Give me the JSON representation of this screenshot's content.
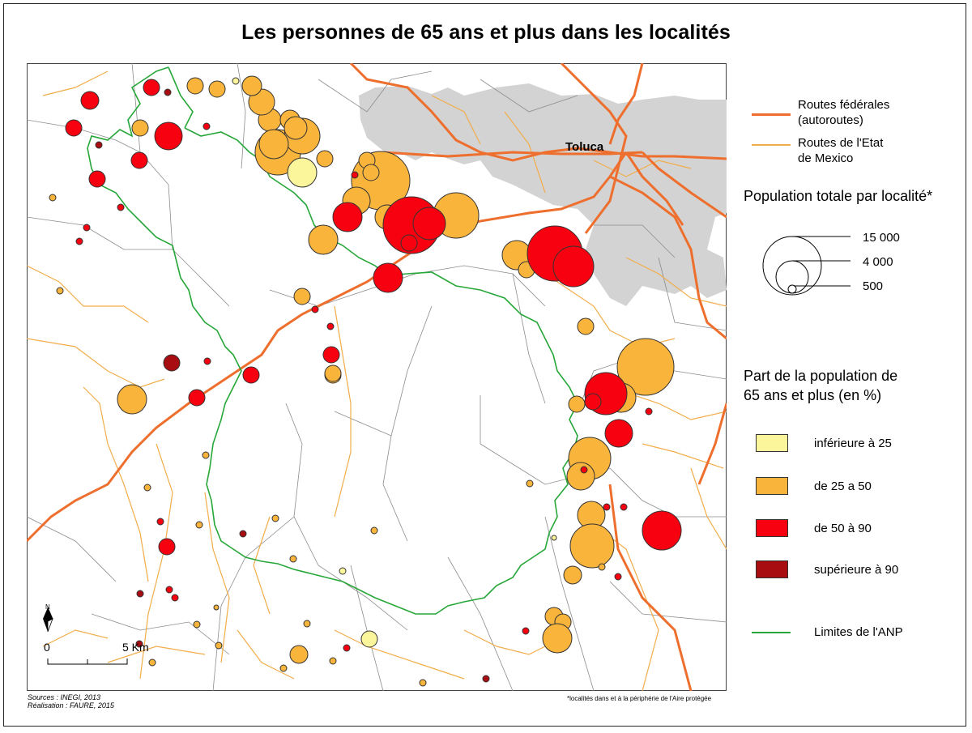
{
  "title": "Les personnes de 65 ans et plus dans les localités",
  "map": {
    "city_label": "Toluca",
    "north_label": "N",
    "scale": {
      "start": "0",
      "end": "5 Km"
    },
    "sources": [
      "Sources : INEGI, 2013",
      "Réalisation : FAURE, 2015"
    ],
    "footnote": "*localités dans et à la périphérie de l'Aire protégée"
  },
  "legend": {
    "roads_federal": "Routes fédérales\n(autoroutes)",
    "roads_state": "Routes de l'Etat\nde Mexico",
    "population_title": "Population totale par localité*",
    "population_sizes": [
      "15 000",
      "4 000",
      "500"
    ],
    "share_title": "Part de la population de\n65 ans et plus (en %)",
    "share_classes": [
      {
        "label": "inférieure à 25",
        "color": "#fbf59b"
      },
      {
        "label": "de 25 a 50",
        "color": "#f9b43c"
      },
      {
        "label": "de 50 à 90",
        "color": "#f7000f"
      },
      {
        "label": "supérieure à 90",
        "color": "#a80d12"
      }
    ],
    "anp_limit": "Limites de l'ANP",
    "colors": {
      "federal_road": "#ee6f2d",
      "state_road": "#f2ad4a",
      "anp": "#27a739",
      "urban": "#d3d3d3"
    }
  }
}
